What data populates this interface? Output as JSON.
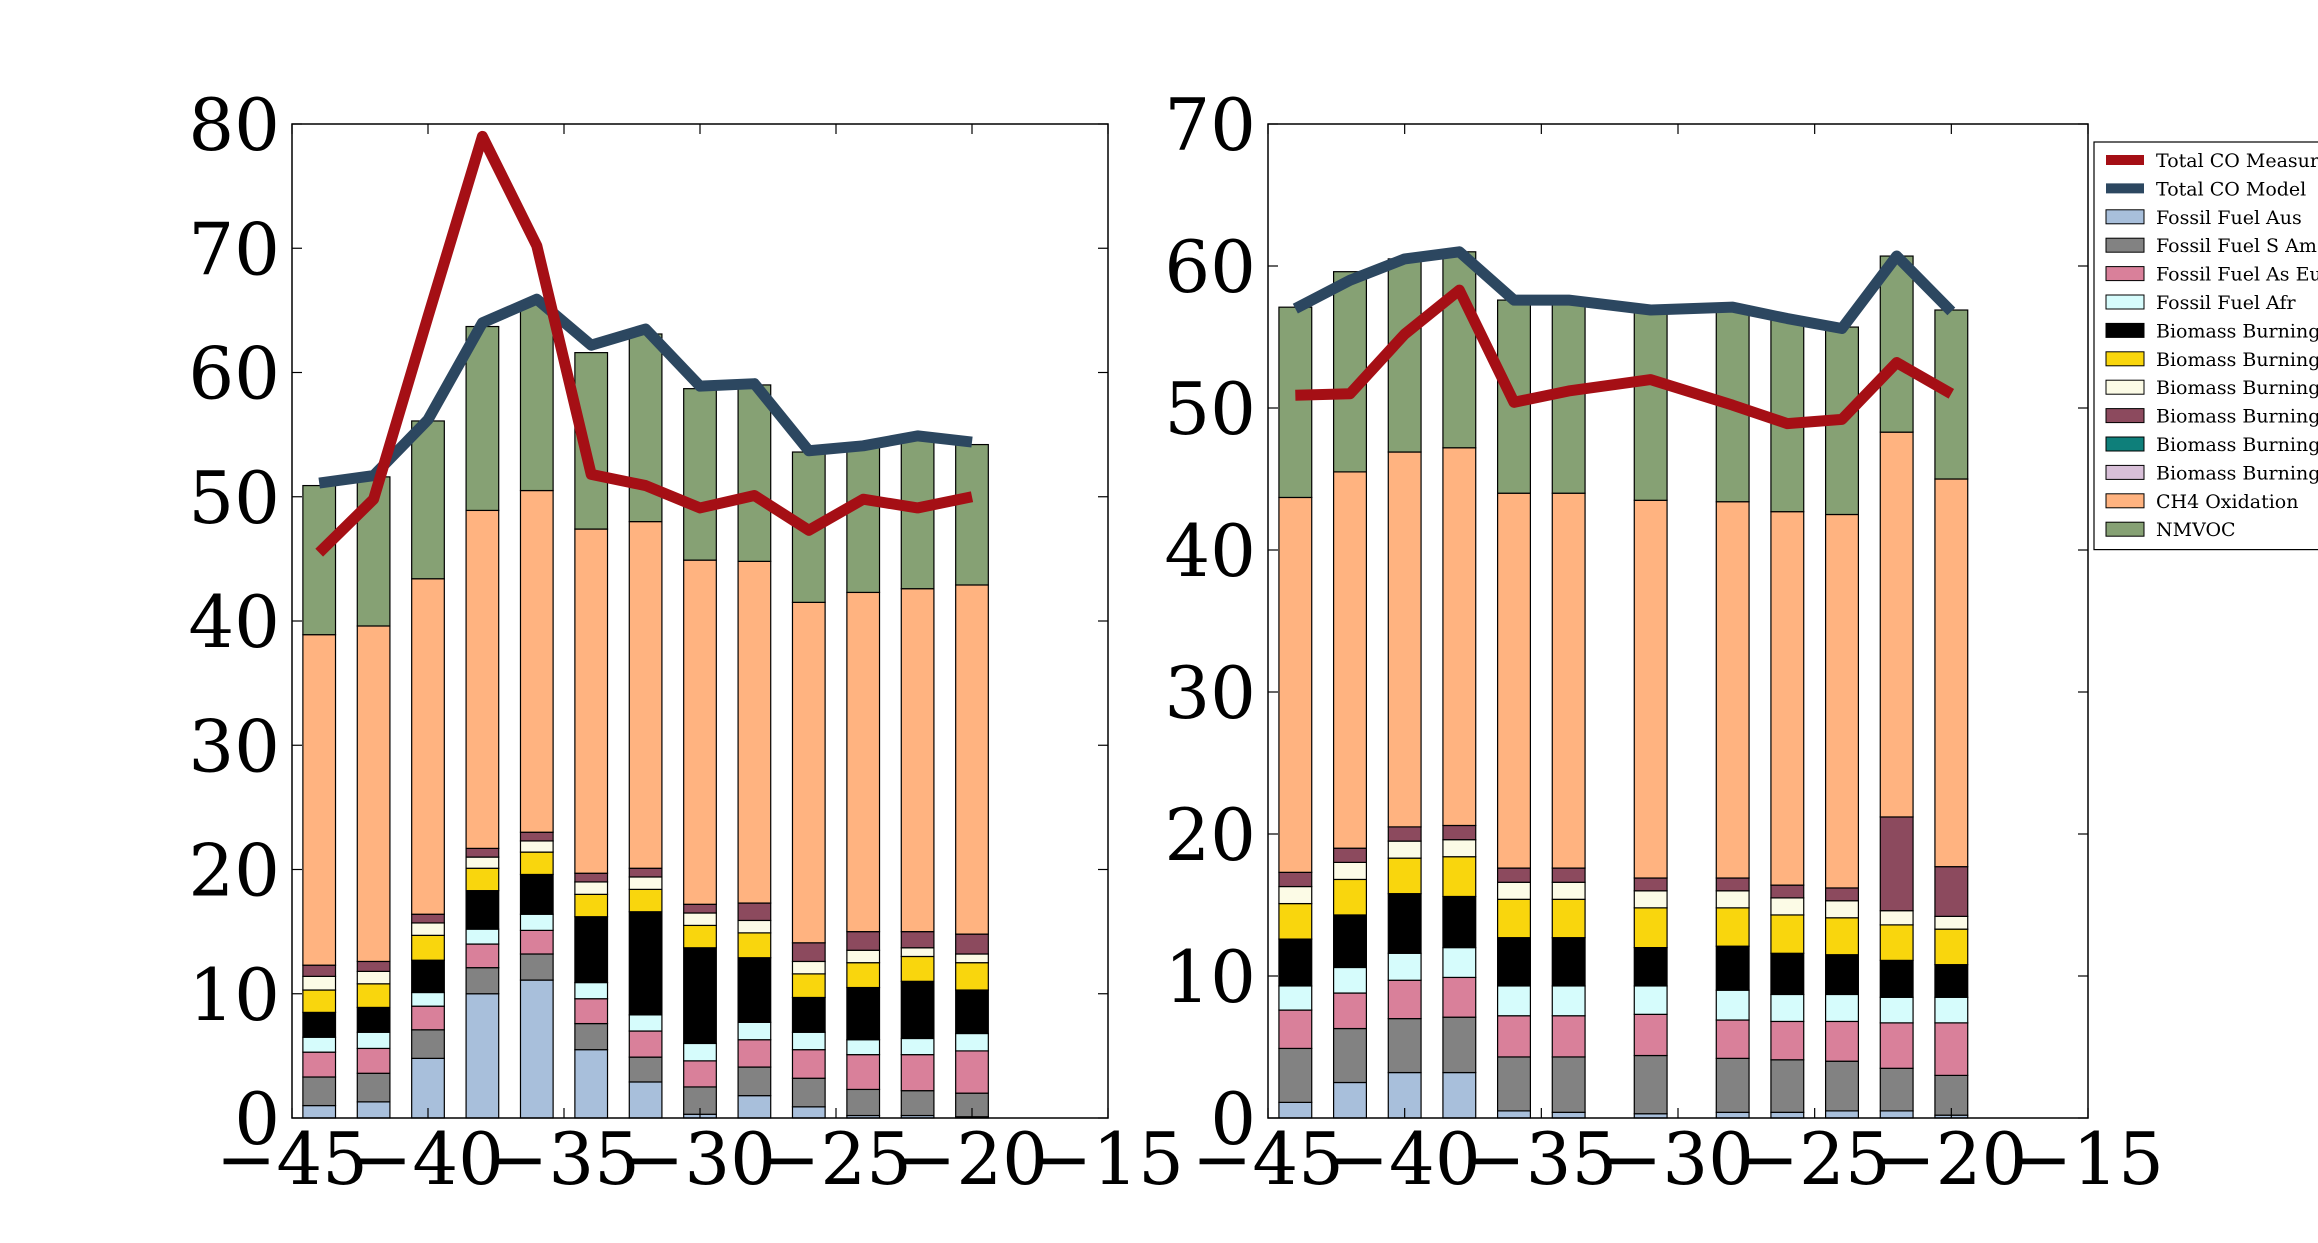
{
  "chart_data": {
    "type": "bar",
    "stacked": true,
    "grid": false,
    "legend": {
      "placement": "right",
      "entries": [
        {
          "label": "Total CO Measurement",
          "kind": "line",
          "color": "#a50f15"
        },
        {
          "label": "Total CO Model",
          "kind": "line",
          "color": "#2c4760"
        },
        {
          "label": "Fossil Fuel Aus",
          "kind": "patch",
          "color": "#a8bfdb"
        },
        {
          "label": "Fossil Fuel S Am",
          "kind": "patch",
          "color": "#828282"
        },
        {
          "label": "Fossil Fuel As Eu, N Am",
          "kind": "patch",
          "color": "#d9809a"
        },
        {
          "label": "Fossil Fuel Afr",
          "kind": "patch",
          "color": "#d6fcfc"
        },
        {
          "label": "Biomass Burning Aus",
          "kind": "patch",
          "color": "#000000"
        },
        {
          "label": "Biomass Burning Afr",
          "kind": "patch",
          "color": "#f9d60d"
        },
        {
          "label": "Biomass Burning S Am",
          "kind": "patch",
          "color": "#fcfbe6"
        },
        {
          "label": "Biomass Burning Oce",
          "kind": "patch",
          "color": "#8c4a5e"
        },
        {
          "label": "Biomass Burning Asia",
          "kind": "patch",
          "color": "#0e7f7a"
        },
        {
          "label": "Biomass Burning Ind",
          "kind": "patch",
          "color": "#d8bfd8"
        },
        {
          "label": "CH4 Oxidation",
          "kind": "patch",
          "color": "#ffb380"
        },
        {
          "label": "NMVOC",
          "kind": "patch",
          "color": "#86a174"
        }
      ]
    },
    "components": [
      {
        "name": "Fossil Fuel Aus",
        "color": "#a8bfdb"
      },
      {
        "name": "Fossil Fuel S Am",
        "color": "#828282"
      },
      {
        "name": "Fossil Fuel As Eu, N Am",
        "color": "#d9809a"
      },
      {
        "name": "Fossil Fuel Afr",
        "color": "#d6fcfc"
      },
      {
        "name": "Biomass Burning Aus",
        "color": "#000000"
      },
      {
        "name": "Biomass Burning Afr",
        "color": "#f9d60d"
      },
      {
        "name": "Biomass Burning S Am",
        "color": "#fcfbe6"
      },
      {
        "name": "Biomass Burning Oce",
        "color": "#8c4a5e"
      },
      {
        "name": "Biomass Burning Asia",
        "color": "#0e7f7a"
      },
      {
        "name": "Biomass Burning Ind",
        "color": "#d8bfd8"
      },
      {
        "name": "CH4 Oxidation",
        "color": "#ffb380"
      },
      {
        "name": "NMVOC",
        "color": "#86a174"
      }
    ],
    "panels": [
      {
        "xlim": [
          -45,
          -15
        ],
        "ylim": [
          0,
          80
        ],
        "xticks": [
          -45,
          -40,
          -35,
          -30,
          -25,
          -20,
          -15
        ],
        "yticks": [
          0,
          10,
          20,
          30,
          40,
          50,
          60,
          70,
          80
        ],
        "xtick_labels": [
          "−45",
          "−40",
          "−35",
          "−30",
          "−25",
          "−20",
          "−15"
        ],
        "ytick_labels": [
          "0",
          "10",
          "20",
          "30",
          "40",
          "50",
          "60",
          "70",
          "80"
        ],
        "bar_width": 1.2,
        "bar_x": [
          -44.0,
          -42.0,
          -40.0,
          -38.0,
          -36.0,
          -34.0,
          -32.0,
          -30.0,
          -28.0,
          -26.0,
          -24.0,
          -22.0,
          -20.0
        ],
        "stacks": [
          [
            1.0,
            2.3,
            2.0,
            1.2,
            2.0,
            1.8,
            1.1,
            0.9,
            0,
            0,
            26.6,
            12.0
          ],
          [
            1.3,
            2.3,
            2.0,
            1.3,
            2.0,
            1.9,
            1.0,
            0.8,
            0,
            0,
            27.0,
            12.0
          ],
          [
            4.8,
            2.3,
            1.9,
            1.1,
            2.6,
            2.0,
            1.0,
            0.7,
            0,
            0,
            27.0,
            12.7
          ],
          [
            10.0,
            2.1,
            1.9,
            1.2,
            3.1,
            1.8,
            0.9,
            0.7,
            0,
            0,
            27.2,
            14.8
          ],
          [
            11.1,
            2.1,
            1.9,
            1.3,
            3.2,
            1.8,
            0.9,
            0.7,
            0,
            0,
            27.5,
            15.0
          ],
          [
            5.5,
            2.1,
            2.0,
            1.3,
            5.3,
            1.8,
            1.0,
            0.7,
            0,
            0,
            27.7,
            14.2
          ],
          [
            2.9,
            2.0,
            2.1,
            1.3,
            8.3,
            1.8,
            1.0,
            0.7,
            0,
            0,
            27.9,
            15.1
          ],
          [
            0.3,
            2.2,
            2.1,
            1.4,
            7.7,
            1.8,
            1.0,
            0.7,
            0,
            0,
            27.7,
            13.8
          ],
          [
            1.8,
            2.3,
            2.2,
            1.4,
            5.2,
            2.0,
            1.0,
            1.4,
            0,
            0,
            27.5,
            14.2
          ],
          [
            0.9,
            2.3,
            2.3,
            1.4,
            2.8,
            1.9,
            1.0,
            1.5,
            0,
            0,
            27.4,
            12.1
          ],
          [
            0.2,
            2.1,
            2.8,
            1.2,
            4.2,
            2.0,
            1.0,
            1.5,
            0,
            0,
            27.3,
            11.9
          ],
          [
            0.2,
            2.0,
            2.9,
            1.3,
            4.6,
            2.0,
            0.7,
            1.3,
            0,
            0,
            27.6,
            12.4
          ],
          [
            0.1,
            1.9,
            3.4,
            1.4,
            3.5,
            2.2,
            0.7,
            1.6,
            0,
            0,
            28.1,
            11.3
          ]
        ],
        "measurement": {
          "x": [
            -44.0,
            -42.0,
            -40.0,
            -38.0,
            -36.0,
            -34.0,
            -32.0,
            -30.0,
            -28.0,
            -26.0,
            -24.0,
            -22.0,
            -20.0
          ],
          "y": [
            45.5,
            49.8,
            64.5,
            79.0,
            70.2,
            51.8,
            50.9,
            49.1,
            50.1,
            47.3,
            49.8,
            49.1,
            50.0
          ]
        },
        "model": {
          "x": [
            -44.0,
            -42.0,
            -40.0,
            -38.0,
            -36.0,
            -34.0,
            -32.0,
            -30.0,
            -28.0,
            -26.0,
            -24.0,
            -22.0,
            -20.0
          ],
          "y": [
            51.1,
            51.7,
            56.2,
            64.0,
            65.9,
            62.2,
            63.5,
            58.9,
            59.1,
            53.7,
            54.1,
            54.9,
            54.4
          ]
        }
      },
      {
        "xlim": [
          -45,
          -15
        ],
        "ylim": [
          0,
          70
        ],
        "xticks": [
          -45,
          -40,
          -35,
          -30,
          -25,
          -20,
          -15
        ],
        "yticks": [
          0,
          10,
          20,
          30,
          40,
          50,
          60,
          70
        ],
        "xtick_labels": [
          "−45",
          "−40",
          "−35",
          "−30",
          "−25",
          "−20",
          "−15"
        ],
        "ytick_labels": [
          "0",
          "10",
          "20",
          "30",
          "40",
          "50",
          "60",
          "70"
        ],
        "bar_width": 1.2,
        "bar_x": [
          -44.0,
          -42.0,
          -40.0,
          -38.0,
          -36.0,
          -34.0,
          -31.0,
          -28.0,
          -26.0,
          -24.0,
          -22.0,
          -20.0
        ],
        "stacks": [
          [
            1.1,
            3.8,
            2.7,
            1.7,
            3.3,
            2.5,
            1.2,
            1.0,
            0,
            0,
            26.4,
            13.4
          ],
          [
            2.5,
            3.8,
            2.5,
            1.8,
            3.7,
            2.5,
            1.2,
            1.0,
            0,
            0,
            26.5,
            14.1
          ],
          [
            3.2,
            3.8,
            2.7,
            1.9,
            4.2,
            2.5,
            1.2,
            1.0,
            0,
            0,
            26.4,
            13.6
          ],
          [
            3.2,
            3.9,
            2.8,
            2.1,
            3.6,
            2.8,
            1.2,
            1.0,
            0,
            0,
            26.6,
            13.8
          ],
          [
            0.5,
            3.8,
            2.9,
            2.1,
            3.4,
            2.7,
            1.2,
            1.0,
            0,
            0,
            26.4,
            13.6
          ],
          [
            0.4,
            3.9,
            2.9,
            2.1,
            3.4,
            2.7,
            1.2,
            1.0,
            0,
            0,
            26.4,
            13.6
          ],
          [
            0.3,
            4.1,
            2.9,
            2.0,
            2.7,
            2.8,
            1.2,
            0.9,
            0,
            0,
            26.6,
            13.6
          ],
          [
            0.4,
            3.8,
            2.7,
            2.1,
            3.1,
            2.7,
            1.2,
            0.9,
            0,
            0,
            26.5,
            13.8
          ],
          [
            0.4,
            3.7,
            2.7,
            1.9,
            2.9,
            2.7,
            1.2,
            0.9,
            0,
            0,
            26.3,
            13.5
          ],
          [
            0.5,
            3.5,
            2.8,
            1.9,
            2.8,
            2.6,
            1.2,
            0.9,
            0,
            0,
            26.3,
            13.2
          ],
          [
            0.5,
            3.0,
            3.2,
            1.8,
            2.6,
            2.5,
            1.0,
            6.6,
            0,
            0,
            27.1,
            12.4
          ],
          [
            0.2,
            2.8,
            3.7,
            1.8,
            2.3,
            2.5,
            0.9,
            3.5,
            0,
            0,
            27.3,
            11.9
          ]
        ],
        "measurement": {
          "x": [
            -44.0,
            -42.0,
            -40.0,
            -38.0,
            -36.0,
            -34.0,
            -31.0,
            -28.0,
            -26.0,
            -24.0,
            -22.0,
            -20.0
          ],
          "y": [
            50.9,
            51.0,
            55.2,
            58.3,
            50.4,
            51.2,
            52.0,
            50.2,
            48.9,
            49.2,
            53.2,
            51.0
          ]
        },
        "model": {
          "x": [
            -44.0,
            -42.0,
            -40.0,
            -38.0,
            -36.0,
            -34.0,
            -31.0,
            -28.0,
            -26.0,
            -24.0,
            -22.0,
            -20.0
          ],
          "y": [
            57.0,
            59.0,
            60.5,
            61.0,
            57.6,
            57.6,
            56.9,
            57.1,
            56.3,
            55.6,
            60.7,
            56.8
          ]
        }
      }
    ]
  }
}
